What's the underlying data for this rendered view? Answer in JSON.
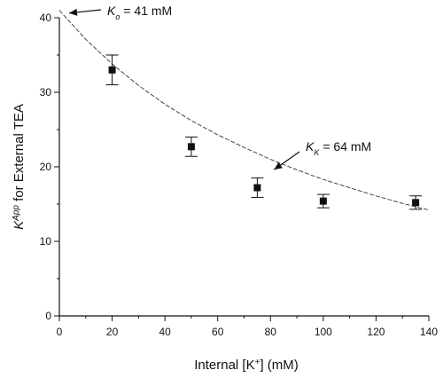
{
  "chart_data": {
    "type": "scatter",
    "title": "",
    "xlabel": "Internal [K+] (mM)",
    "ylabel": "K App for External TEA",
    "xlim": [
      0,
      140
    ],
    "ylim": [
      0,
      40
    ],
    "xticks": [
      0,
      20,
      40,
      60,
      80,
      100,
      120,
      140
    ],
    "yticks": [
      0,
      10,
      20,
      30,
      40
    ],
    "series": [
      {
        "type": "scatter",
        "x": [
          20,
          50,
          75,
          100,
          135
        ],
        "y": [
          33.0,
          22.7,
          17.2,
          15.4,
          15.2
        ],
        "err": [
          2.0,
          1.3,
          1.3,
          0.9,
          0.9
        ]
      },
      {
        "type": "line",
        "style": "dashed",
        "x": [
          0,
          10,
          20,
          30,
          40,
          50,
          60,
          70,
          80,
          90,
          100,
          110,
          120,
          130,
          140
        ],
        "y": [
          41.0,
          37.1,
          33.8,
          30.9,
          28.4,
          26.2,
          24.3,
          22.6,
          21.0,
          19.6,
          18.3,
          17.2,
          16.1,
          15.1,
          14.2
        ]
      }
    ],
    "annotations": [
      {
        "symbol": "K",
        "subscript": "o",
        "text": "= 41 mM",
        "x": 2,
        "y": 40.5
      },
      {
        "symbol": "K",
        "subscript": "K",
        "text": "= 64 mM",
        "x": 80,
        "y": 19.5
      }
    ],
    "grid": false
  }
}
